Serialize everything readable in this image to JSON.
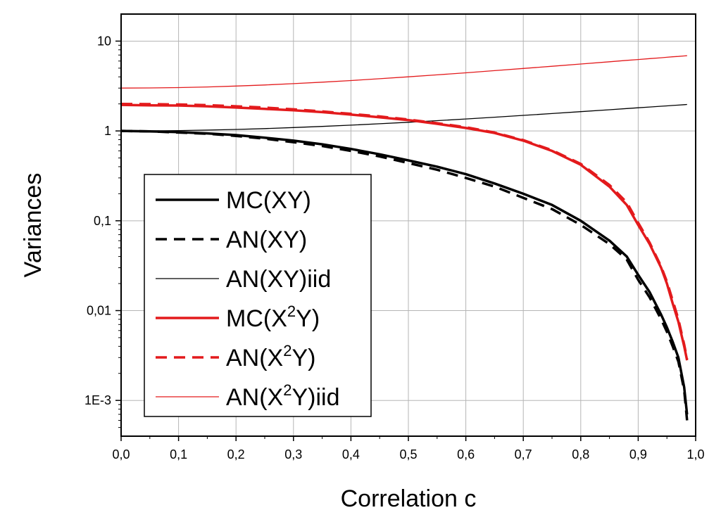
{
  "chart_data": {
    "type": "line",
    "title": "",
    "xlabel": "Correlation c",
    "ylabel": "Variances",
    "xscale": "linear",
    "yscale": "log",
    "xlim": [
      0.0,
      1.0
    ],
    "ylim": [
      0.0004,
      20
    ],
    "grid": true,
    "legend_position": "left",
    "x_ticks": [
      0.0,
      0.1,
      0.2,
      0.3,
      0.4,
      0.5,
      0.6,
      0.7,
      0.8,
      0.9,
      1.0
    ],
    "x_tick_labels": [
      "0,0",
      "0,1",
      "0,2",
      "0,3",
      "0,4",
      "0,5",
      "0,6",
      "0,7",
      "0,8",
      "0,9",
      "1,0"
    ],
    "y_ticks": [
      0.001,
      0.01,
      0.1,
      1,
      10
    ],
    "y_tick_labels": [
      "1E-3",
      "0,01",
      "0,1",
      "1",
      "10"
    ],
    "x": [
      0.0,
      0.05,
      0.1,
      0.15,
      0.2,
      0.25,
      0.3,
      0.35,
      0.4,
      0.45,
      0.5,
      0.55,
      0.6,
      0.65,
      0.7,
      0.75,
      0.8,
      0.85,
      0.88,
      0.9,
      0.92,
      0.94,
      0.95,
      0.96,
      0.97,
      0.98,
      0.985
    ],
    "series": [
      {
        "name": "MC(XY)",
        "base": "MC(XY)",
        "sup": "",
        "suffix": "",
        "color": "#000000",
        "width": 3.5,
        "dash": "",
        "values": [
          1.0,
          0.99,
          0.97,
          0.94,
          0.9,
          0.84,
          0.78,
          0.71,
          0.63,
          0.55,
          0.47,
          0.4,
          0.33,
          0.26,
          0.2,
          0.15,
          0.1,
          0.06,
          0.04,
          0.025,
          0.016,
          0.009,
          0.0065,
          0.0045,
          0.003,
          0.0014,
          0.0007
        ]
      },
      {
        "name": "AN(XY)",
        "base": "AN(XY)",
        "sup": "",
        "suffix": "",
        "color": "#000000",
        "width": 3.5,
        "dash": "16,10",
        "values": [
          1.0,
          0.99,
          0.96,
          0.93,
          0.88,
          0.82,
          0.75,
          0.68,
          0.6,
          0.52,
          0.44,
          0.37,
          0.3,
          0.24,
          0.18,
          0.135,
          0.09,
          0.055,
          0.037,
          0.022,
          0.014,
          0.008,
          0.0058,
          0.004,
          0.0027,
          0.0013,
          0.0006
        ]
      },
      {
        "name": "AN(XY)iid",
        "base": "AN(XY)iid",
        "sup": "",
        "suffix": "",
        "color": "#000000",
        "width": 1.3,
        "dash": "",
        "values": [
          1.0,
          1.0025,
          1.01,
          1.0225,
          1.04,
          1.0625,
          1.09,
          1.1225,
          1.16,
          1.2025,
          1.25,
          1.3025,
          1.36,
          1.4225,
          1.49,
          1.5625,
          1.64,
          1.7225,
          1.7744,
          1.81,
          1.8464,
          1.8836,
          1.9025,
          1.9216,
          1.9409,
          1.9604,
          1.9702
        ]
      },
      {
        "name": "MC(X2Y)",
        "base": "MC(X",
        "sup": "2",
        "suffix": "Y)",
        "color": "#e31a1c",
        "width": 3.5,
        "dash": "",
        "values": [
          1.95,
          1.93,
          1.92,
          1.88,
          1.82,
          1.76,
          1.7,
          1.62,
          1.52,
          1.42,
          1.32,
          1.2,
          1.08,
          0.95,
          0.78,
          0.6,
          0.42,
          0.24,
          0.15,
          0.09,
          0.055,
          0.03,
          0.02,
          0.012,
          0.0075,
          0.004,
          0.0028
        ]
      },
      {
        "name": "AN(X2Y)",
        "base": "AN(X",
        "sup": "2",
        "suffix": "Y)",
        "color": "#e31a1c",
        "width": 3.5,
        "dash": "16,10",
        "values": [
          2.0,
          1.99,
          1.97,
          1.94,
          1.88,
          1.82,
          1.74,
          1.65,
          1.55,
          1.45,
          1.34,
          1.22,
          1.1,
          0.96,
          0.79,
          0.61,
          0.43,
          0.25,
          0.16,
          0.095,
          0.057,
          0.031,
          0.021,
          0.013,
          0.008,
          0.0042,
          0.0029
        ]
      },
      {
        "name": "AN(X2Y)iid",
        "base": "AN(X",
        "sup": "2",
        "suffix": "Y)iid",
        "color": "#e31a1c",
        "width": 1.3,
        "dash": "",
        "values": [
          3.0,
          3.01,
          3.04,
          3.09,
          3.16,
          3.25,
          3.36,
          3.49,
          3.64,
          3.81,
          4.0,
          4.21,
          4.44,
          4.69,
          4.96,
          5.25,
          5.56,
          5.89,
          6.1,
          6.24,
          6.39,
          6.53,
          6.61,
          6.69,
          6.76,
          6.84,
          6.88
        ]
      }
    ]
  }
}
